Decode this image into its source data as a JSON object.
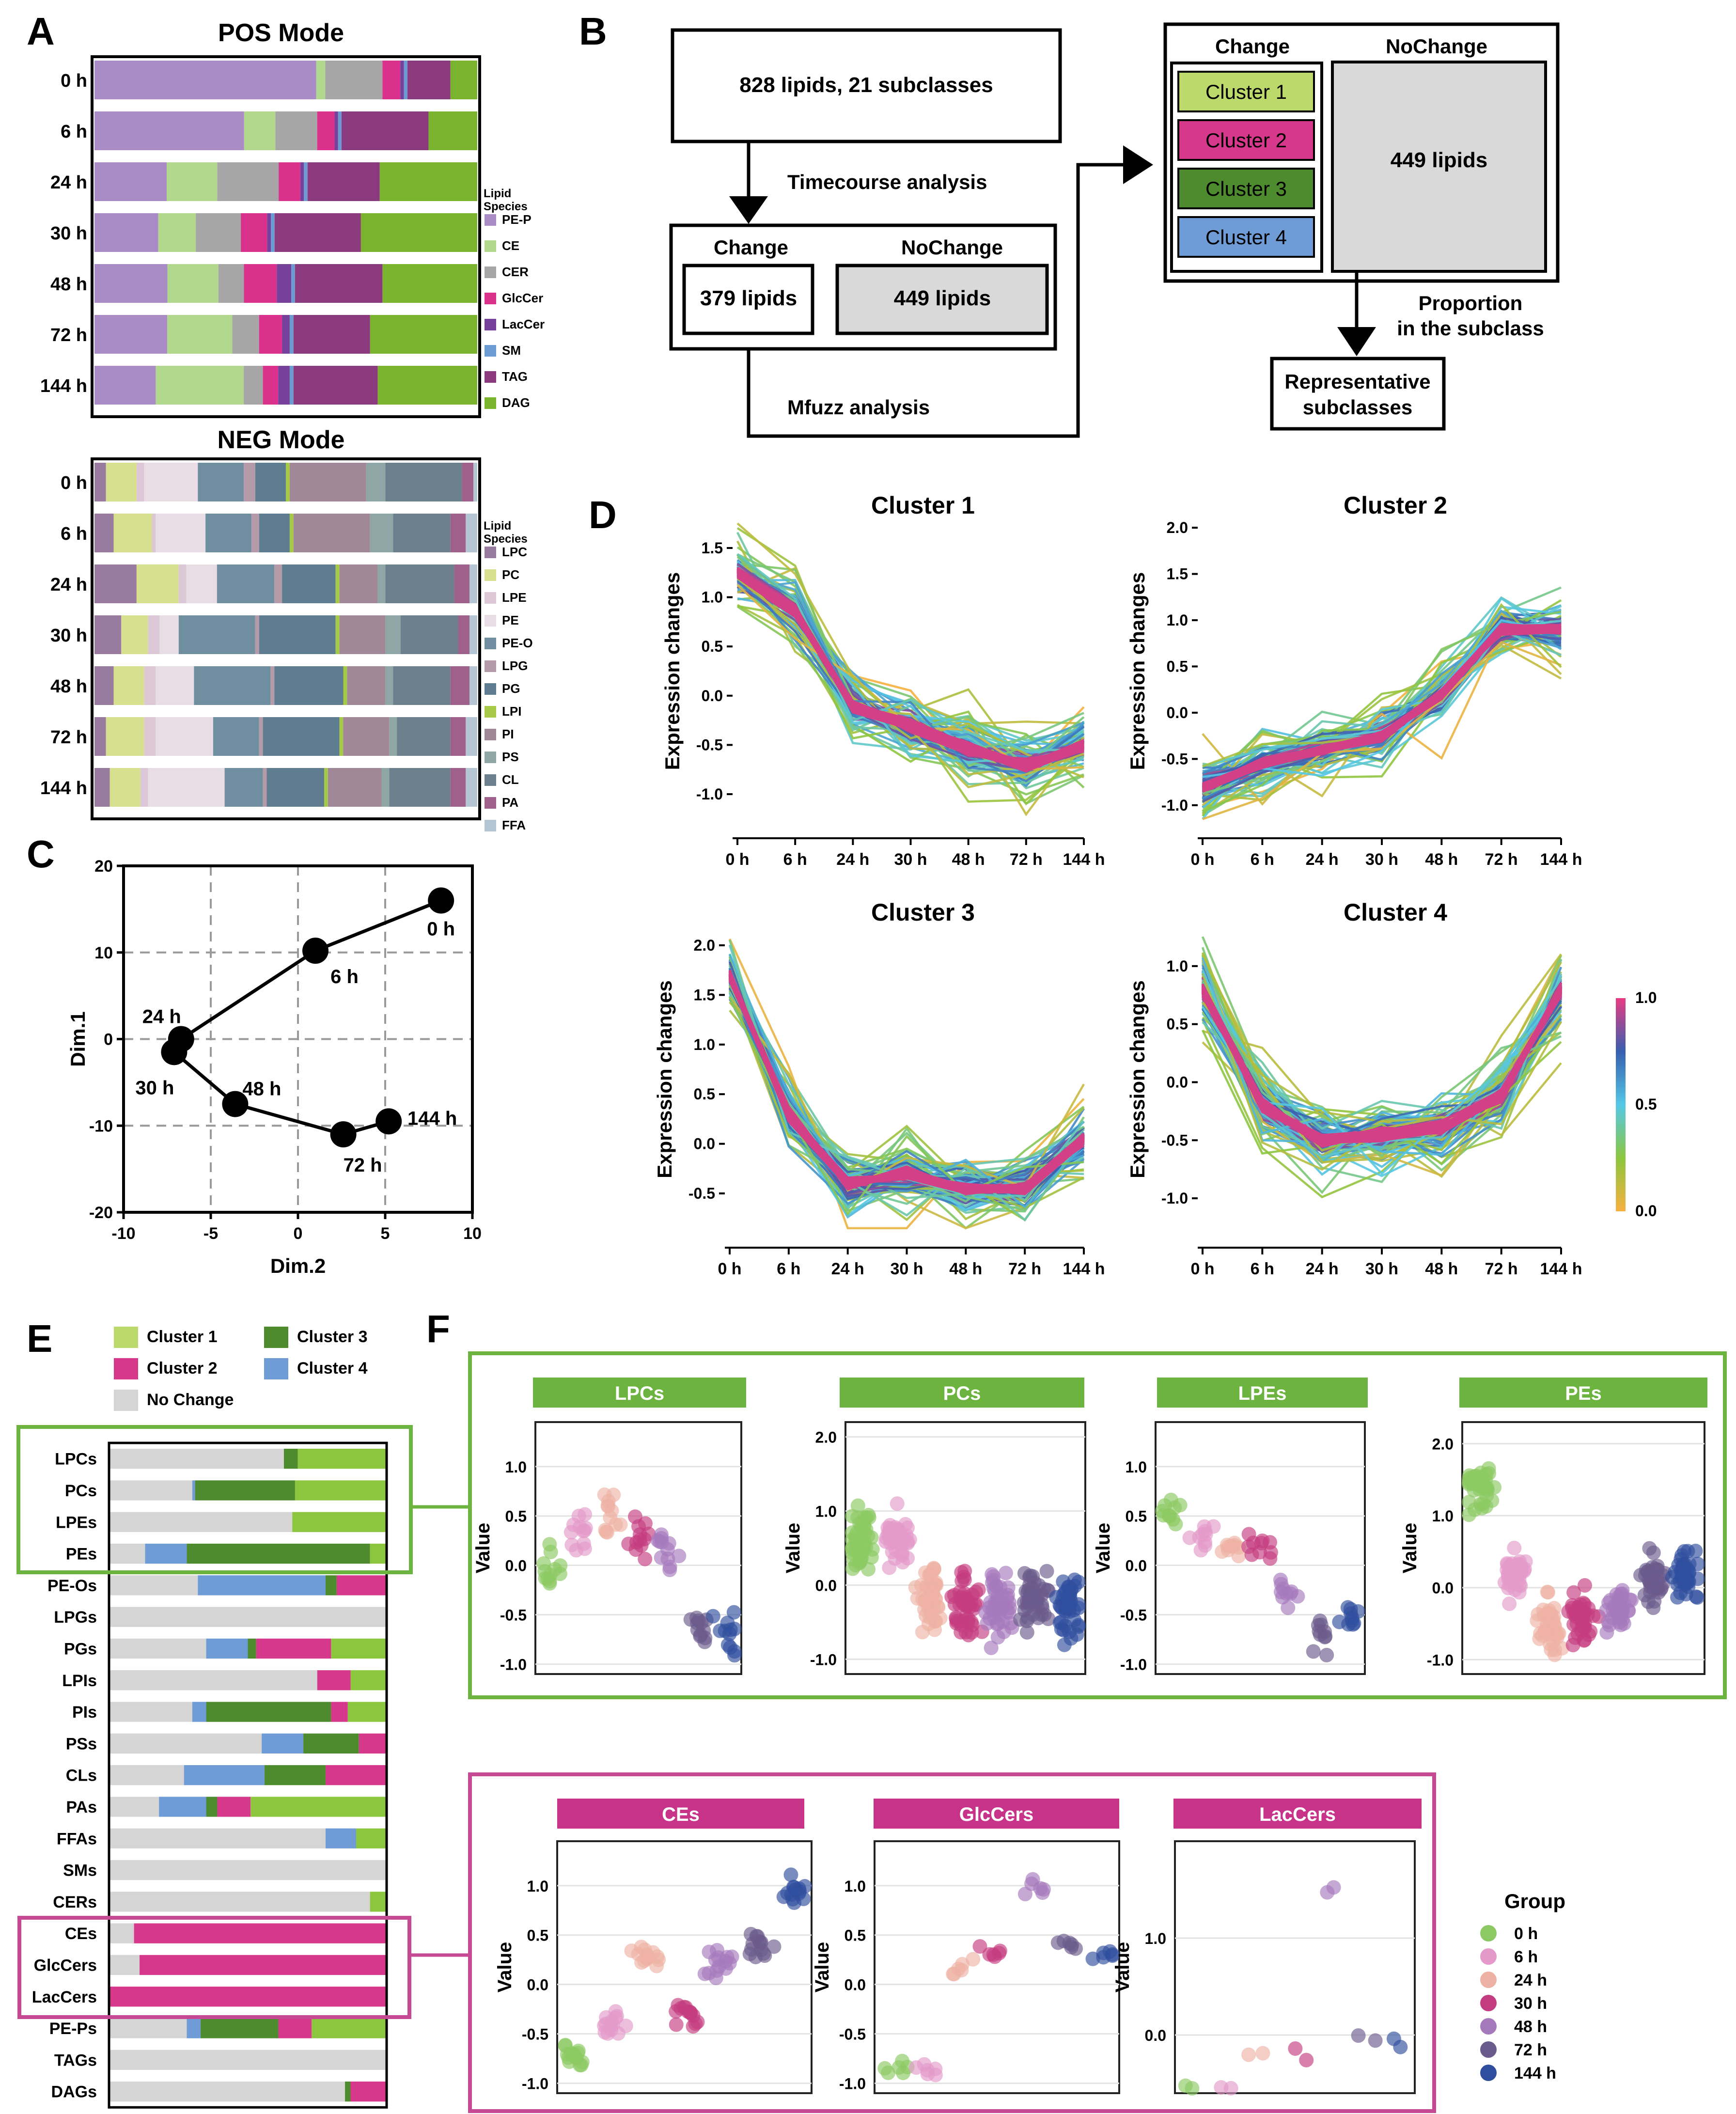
{
  "panel_letters": {
    "a": "A",
    "b": "B",
    "c": "C",
    "d": "D",
    "e": "E",
    "f": "F"
  },
  "colors": {
    "PE-P": "#a98cc6",
    "CE": "#b2d88e",
    "CER": "#a6a6a6",
    "GlcCer": "#d9318c",
    "LacCer": "#75419a",
    "SM": "#6b9bd2",
    "TAG": "#8b3a7e",
    "DAG": "#7ab32e",
    "LPC": "#9a7ba0",
    "PC": "#d6e08f",
    "LPE": "#dcc7d6",
    "PE": "#e8dde5",
    "PE-O": "#6f8fa0",
    "LPG": "#b59aaa",
    "PG": "#5f7d90",
    "LPI": "#a7c948",
    "PI": "#a08898",
    "PS": "#8fa6a6",
    "CL": "#6c7f8c",
    "PA": "#a0608c",
    "FFA": "#b4c6d4",
    "cluster1": "#8cc63f",
    "cluster1_light": "#bcd96b",
    "cluster2": "#d6398b",
    "cluster3": "#4e8a2e",
    "cluster4": "#6f9bd6",
    "nochange": "#d5d5d5",
    "frame_green": "#6db33f",
    "frame_pink": "#c54a93"
  },
  "panelA": {
    "pos_title": "POS Mode",
    "neg_title": "NEG Mode",
    "legend_title": "Lipid Species",
    "rows": [
      "0 h",
      "6 h",
      "24 h",
      "30 h",
      "48 h",
      "72 h",
      "144 h"
    ],
    "pos_species": [
      "PE-P",
      "CE",
      "CER",
      "GlcCer",
      "LacCer",
      "SM",
      "TAG",
      "DAG"
    ],
    "pos_fractions": [
      [
        0.62,
        0.025,
        0.16,
        0.05,
        0.01,
        0.01,
        0.12,
        0.075
      ],
      [
        0.43,
        0.09,
        0.12,
        0.05,
        0.01,
        0.01,
        0.25,
        0.14
      ],
      [
        0.2,
        0.14,
        0.17,
        0.06,
        0.01,
        0.01,
        0.2,
        0.27
      ],
      [
        0.17,
        0.1,
        0.12,
        0.07,
        0.01,
        0.01,
        0.23,
        0.31
      ],
      [
        0.2,
        0.14,
        0.07,
        0.09,
        0.04,
        0.01,
        0.24,
        0.26
      ],
      [
        0.19,
        0.17,
        0.07,
        0.06,
        0.02,
        0.01,
        0.2,
        0.28
      ],
      [
        0.16,
        0.23,
        0.05,
        0.04,
        0.03,
        0.01,
        0.22,
        0.26
      ]
    ],
    "neg_species": [
      "LPC",
      "PC",
      "LPE",
      "PE",
      "PE-O",
      "LPG",
      "PG",
      "LPI",
      "PI",
      "PS",
      "CL",
      "PA",
      "FFA"
    ],
    "neg_fractions": [
      [
        0.03,
        0.08,
        0.02,
        0.14,
        0.12,
        0.03,
        0.08,
        0.01,
        0.2,
        0.05,
        0.2,
        0.03,
        0.01
      ],
      [
        0.05,
        0.1,
        0.01,
        0.13,
        0.12,
        0.02,
        0.08,
        0.01,
        0.2,
        0.06,
        0.15,
        0.04,
        0.03
      ],
      [
        0.11,
        0.11,
        0.02,
        0.08,
        0.15,
        0.02,
        0.14,
        0.01,
        0.1,
        0.02,
        0.18,
        0.04,
        0.02
      ],
      [
        0.07,
        0.07,
        0.03,
        0.05,
        0.2,
        0.01,
        0.2,
        0.01,
        0.12,
        0.04,
        0.15,
        0.03,
        0.02
      ],
      [
        0.05,
        0.08,
        0.03,
        0.1,
        0.2,
        0.01,
        0.18,
        0.01,
        0.1,
        0.02,
        0.15,
        0.05,
        0.02
      ],
      [
        0.03,
        0.1,
        0.03,
        0.15,
        0.12,
        0.01,
        0.2,
        0.01,
        0.12,
        0.02,
        0.14,
        0.04,
        0.03
      ],
      [
        0.04,
        0.08,
        0.02,
        0.2,
        0.1,
        0.01,
        0.15,
        0.01,
        0.14,
        0.02,
        0.16,
        0.04,
        0.03
      ]
    ]
  },
  "panelB": {
    "box_total": "828 lipids, 21 subclasses",
    "timecourse": "Timecourse analysis",
    "change": "Change",
    "nochange": "NoChange",
    "change_count": "379 lipids",
    "nochange_count": "449 lipids",
    "mfuzz": "Mfuzz analysis",
    "clusters": [
      "Cluster 1",
      "Cluster 2",
      "Cluster 3",
      "Cluster 4"
    ],
    "proportion": "Proportion",
    "in_subclass": "in the subclass",
    "rep1": "Representative",
    "rep2": "subclasses"
  },
  "chart_data": [
    {
      "id": "C",
      "type": "scatter",
      "xlabel": "Dim.2",
      "ylabel": "Dim.1",
      "xlim": [
        -10,
        10
      ],
      "ylim": [
        -20,
        20
      ],
      "xticks": [
        "-10",
        "-5",
        "0",
        "5",
        "10"
      ],
      "yticks": [
        "20",
        "10",
        "0",
        "-10",
        "-20"
      ],
      "points": [
        {
          "label": "0 h",
          "x": 8.2,
          "y": 16
        },
        {
          "label": "6 h",
          "x": 1,
          "y": 10.2
        },
        {
          "label": "24 h",
          "x": -6.7,
          "y": 0
        },
        {
          "label": "30 h",
          "x": -7.1,
          "y": -1.5
        },
        {
          "label": "48 h",
          "x": -3.6,
          "y": -7.5
        },
        {
          "label": "72 h",
          "x": 2.6,
          "y": -11
        },
        {
          "label": "144 h",
          "x": 5.2,
          "y": -9.5
        }
      ]
    },
    {
      "id": "D",
      "type": "line",
      "ylabel": "Expression changes",
      "categories": [
        "0 h",
        "6 h",
        "24 h",
        "30 h",
        "48 h",
        "72 h",
        "144 h"
      ],
      "colorbar": {
        "ticks": [
          "1.0",
          "0.5",
          "0.0"
        ]
      },
      "clusters": [
        {
          "title": "Cluster 1",
          "yticks": [
            "1.5",
            "1.0",
            "0.5",
            "0.0",
            "-0.5",
            "-1.0"
          ],
          "ylim": [
            -1.3,
            1.8
          ],
          "mean": [
            1.25,
            0.85,
            -0.1,
            -0.3,
            -0.55,
            -0.7,
            -0.5
          ]
        },
        {
          "title": "Cluster 2",
          "yticks": [
            "2.0",
            "1.5",
            "1.0",
            "0.5",
            "0.0",
            "-0.5",
            "-1.0"
          ],
          "ylim": [
            -1.2,
            2.1
          ],
          "mean": [
            -0.8,
            -0.55,
            -0.4,
            -0.25,
            0.2,
            0.9,
            0.9
          ]
        },
        {
          "title": "Cluster 3",
          "yticks": [
            "2.0",
            "1.5",
            "1.0",
            "0.5",
            "0.0",
            "-0.5"
          ],
          "ylim": [
            -0.9,
            2.2
          ],
          "mean": [
            1.7,
            0.3,
            -0.4,
            -0.3,
            -0.45,
            -0.45,
            0.05
          ]
        },
        {
          "title": "Cluster 4",
          "yticks": [
            "1.0",
            "0.5",
            "0.0",
            "-0.5",
            "-1.0"
          ],
          "ylim": [
            -1.3,
            1.35
          ],
          "mean": [
            0.8,
            -0.2,
            -0.5,
            -0.45,
            -0.4,
            -0.1,
            0.8
          ]
        }
      ]
    },
    {
      "id": "E",
      "type": "bar",
      "legend": [
        "Cluster 1",
        "Cluster 2",
        "Cluster 3",
        "Cluster 4",
        "No Change"
      ],
      "categories": [
        "LPCs",
        "PCs",
        "LPEs",
        "PEs",
        "PE-Os",
        "LPGs",
        "PGs",
        "LPIs",
        "PIs",
        "PSs",
        "CLs",
        "PAs",
        "FFAs",
        "SMs",
        "CERs",
        "CEs",
        "GlcCers",
        "LacCers",
        "PE-Ps",
        "TAGs",
        "DAGs"
      ],
      "segments": [
        [
          [
            "nochange",
            0.63
          ],
          [
            "cluster3",
            0.05
          ],
          [
            "cluster1",
            0.32
          ]
        ],
        [
          [
            "nochange",
            0.3
          ],
          [
            "cluster4",
            0.01
          ],
          [
            "cluster3",
            0.36
          ],
          [
            "cluster1",
            0.33
          ]
        ],
        [
          [
            "nochange",
            0.66
          ],
          [
            "cluster1",
            0.34
          ]
        ],
        [
          [
            "nochange",
            0.13
          ],
          [
            "cluster4",
            0.15
          ],
          [
            "cluster3",
            0.66
          ],
          [
            "cluster1",
            0.06
          ]
        ],
        [
          [
            "nochange",
            0.32
          ],
          [
            "cluster4",
            0.46
          ],
          [
            "cluster3",
            0.04
          ],
          [
            "cluster2",
            0.18
          ]
        ],
        [
          [
            "nochange",
            1.0
          ]
        ],
        [
          [
            "nochange",
            0.35
          ],
          [
            "cluster4",
            0.15
          ],
          [
            "cluster3",
            0.03
          ],
          [
            "cluster2",
            0.27
          ],
          [
            "cluster1",
            0.2
          ]
        ],
        [
          [
            "nochange",
            0.75
          ],
          [
            "cluster2",
            0.12
          ],
          [
            "cluster1",
            0.13
          ]
        ],
        [
          [
            "nochange",
            0.3
          ],
          [
            "cluster4",
            0.05
          ],
          [
            "cluster3",
            0.45
          ],
          [
            "cluster2",
            0.06
          ],
          [
            "cluster1",
            0.14
          ]
        ],
        [
          [
            "nochange",
            0.55
          ],
          [
            "cluster4",
            0.15
          ],
          [
            "cluster3",
            0.2
          ],
          [
            "cluster2",
            0.1
          ]
        ],
        [
          [
            "nochange",
            0.27
          ],
          [
            "cluster4",
            0.29
          ],
          [
            "cluster3",
            0.22
          ],
          [
            "cluster2",
            0.22
          ]
        ],
        [
          [
            "nochange",
            0.18
          ],
          [
            "cluster4",
            0.17
          ],
          [
            "cluster3",
            0.04
          ],
          [
            "cluster2",
            0.12
          ],
          [
            "cluster1",
            0.49
          ]
        ],
        [
          [
            "nochange",
            0.78
          ],
          [
            "cluster4",
            0.11
          ],
          [
            "cluster1",
            0.11
          ]
        ],
        [
          [
            "nochange",
            1.0
          ]
        ],
        [
          [
            "nochange",
            0.94
          ],
          [
            "cluster1",
            0.06
          ]
        ],
        [
          [
            "nochange",
            0.09
          ],
          [
            "cluster2",
            0.91
          ]
        ],
        [
          [
            "nochange",
            0.11
          ],
          [
            "cluster2",
            0.89
          ]
        ],
        [
          [
            "cluster2",
            1.0
          ]
        ],
        [
          [
            "nochange",
            0.28
          ],
          [
            "cluster4",
            0.05
          ],
          [
            "cluster3",
            0.28
          ],
          [
            "cluster2",
            0.12
          ],
          [
            "cluster1",
            0.27
          ]
        ],
        [
          [
            "nochange",
            1.0
          ]
        ],
        [
          [
            "nochange",
            0.85
          ],
          [
            "cluster3",
            0.02
          ],
          [
            "cluster2",
            0.13
          ]
        ]
      ]
    },
    {
      "id": "F",
      "type": "scatter",
      "ylabel": "Value",
      "groups": [
        "0 h",
        "6 h",
        "24 h",
        "30 h",
        "48 h",
        "72 h",
        "144 h"
      ],
      "group_colors": [
        "#8cc963",
        "#e49ac9",
        "#eeb2a4",
        "#c43c7f",
        "#a679bd",
        "#6b5b8c",
        "#2f4f9e"
      ],
      "legend_title": "Group",
      "plots": [
        {
          "title": "LPCs",
          "header": "#6cb33f",
          "ylim": [
            -1.1,
            1.45
          ],
          "yticks": [
            "1.0",
            "0.5",
            "0.0",
            "-0.5",
            "-1.0"
          ],
          "means": [
            0.0,
            0.35,
            0.5,
            0.3,
            0.2,
            -0.6,
            -0.7
          ],
          "spread": 0.35,
          "n": 12
        },
        {
          "title": "PCs",
          "header": "#6cb33f",
          "ylim": [
            -1.2,
            2.2
          ],
          "yticks": [
            "2.0",
            "1.0",
            "0.0",
            "-1.0"
          ],
          "means": [
            0.6,
            0.6,
            -0.2,
            -0.3,
            -0.3,
            -0.2,
            -0.3
          ],
          "spread": 0.6,
          "n": 45
        },
        {
          "title": "LPEs",
          "header": "#6cb33f",
          "ylim": [
            -1.1,
            1.45
          ],
          "yticks": [
            "1.0",
            "0.5",
            "0.0",
            "-0.5",
            "-1.0"
          ],
          "means": [
            0.5,
            0.3,
            0.2,
            0.2,
            -0.3,
            -0.7,
            -0.6
          ],
          "spread": 0.25,
          "n": 10
        },
        {
          "title": "PEs",
          "header": "#6cb33f",
          "ylim": [
            -1.2,
            2.3
          ],
          "yticks": [
            "2.0",
            "1.0",
            "0.0",
            "-1.0"
          ],
          "means": [
            1.4,
            0.2,
            -0.5,
            -0.4,
            -0.3,
            0.1,
            0.2
          ],
          "spread": 0.5,
          "n": 40
        },
        {
          "title": "CEs",
          "header": "#c8338a",
          "ylim": [
            -1.1,
            1.45
          ],
          "yticks": [
            "1.0",
            "0.5",
            "0.0",
            "-0.5",
            "-1.0"
          ],
          "means": [
            -0.7,
            -0.4,
            0.3,
            -0.3,
            0.2,
            0.4,
            0.95
          ],
          "spread": 0.2,
          "n": 14
        },
        {
          "title": "GlcCers",
          "header": "#c8338a",
          "ylim": [
            -1.1,
            1.45
          ],
          "yticks": [
            "1.0",
            "0.5",
            "0.0",
            "-0.5",
            "-1.0"
          ],
          "means": [
            -0.85,
            -0.8,
            0.15,
            0.3,
            1.0,
            0.4,
            0.3
          ],
          "spread": 0.15,
          "n": 6
        },
        {
          "title": "LacCers",
          "header": "#c8338a",
          "ylim": [
            -0.6,
            2.0
          ],
          "yticks": [
            "1.0",
            "0.0"
          ],
          "means": [
            -0.55,
            -0.55,
            -0.25,
            -0.2,
            1.5,
            -0.05,
            -0.1
          ],
          "spread": 0.15,
          "n": 2
        }
      ]
    }
  ]
}
